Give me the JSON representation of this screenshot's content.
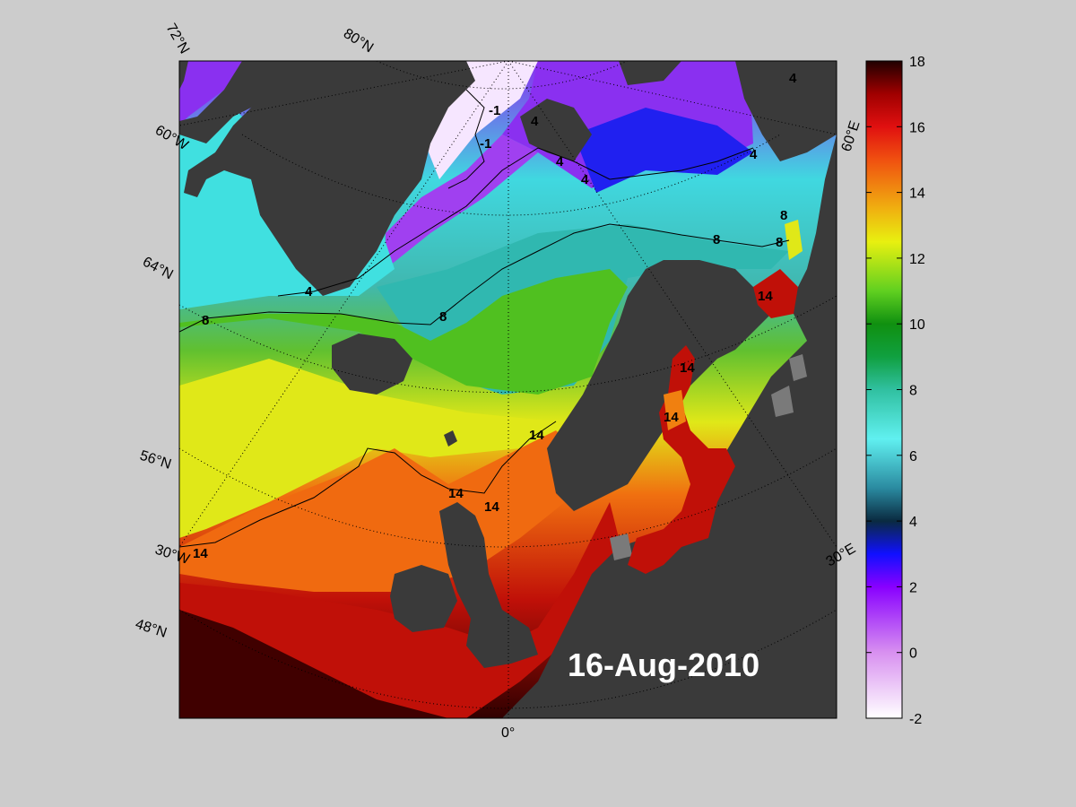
{
  "map": {
    "date_label": "16-Aug-2010",
    "parallels": [
      {
        "label": "72°N",
        "value": 72
      },
      {
        "label": "80°N",
        "value": 80
      },
      {
        "label": "64°N",
        "value": 64
      },
      {
        "label": "56°N",
        "value": 56
      },
      {
        "label": "48°N",
        "value": 48
      }
    ],
    "meridians": [
      {
        "label": "60°W",
        "value": -60
      },
      {
        "label": "30°W",
        "value": -30
      },
      {
        "label": "0°",
        "value": 0
      },
      {
        "label": "30°E",
        "value": 30
      },
      {
        "label": "60°E",
        "value": 60
      }
    ],
    "contours": [
      {
        "level": "-1",
        "label": "-1"
      },
      {
        "level": "4",
        "label": "4"
      },
      {
        "level": "8",
        "label": "8"
      },
      {
        "level": "14",
        "label": "14"
      }
    ],
    "colors": {
      "land": "#3a3a3a",
      "lake": "#7a7a7a",
      "background": "#cccccc",
      "date_text": "#ffffff"
    }
  },
  "colorbar": {
    "min": -2,
    "max": 18,
    "ticks": [
      "18",
      "16",
      "14",
      "12",
      "10",
      "8",
      "6",
      "4",
      "2",
      "0",
      "-2"
    ],
    "stops": [
      {
        "value": -2,
        "color": "#ffffff"
      },
      {
        "value": 0,
        "color": "#d890f0"
      },
      {
        "value": 2,
        "color": "#8800ff"
      },
      {
        "value": 3,
        "color": "#1010ff"
      },
      {
        "value": 4,
        "color": "#0a2a40"
      },
      {
        "value": 5,
        "color": "#2a8aa0"
      },
      {
        "value": 6.5,
        "color": "#60f0f0"
      },
      {
        "value": 8,
        "color": "#30c0a0"
      },
      {
        "value": 9,
        "color": "#10a040"
      },
      {
        "value": 10,
        "color": "#109010"
      },
      {
        "value": 11,
        "color": "#60d020"
      },
      {
        "value": 12.5,
        "color": "#e8f010"
      },
      {
        "value": 13.5,
        "color": "#f0b010"
      },
      {
        "value": 15,
        "color": "#f05010"
      },
      {
        "value": 16,
        "color": "#e01010"
      },
      {
        "value": 17,
        "color": "#a00000"
      },
      {
        "value": 18,
        "color": "#200000"
      }
    ]
  }
}
